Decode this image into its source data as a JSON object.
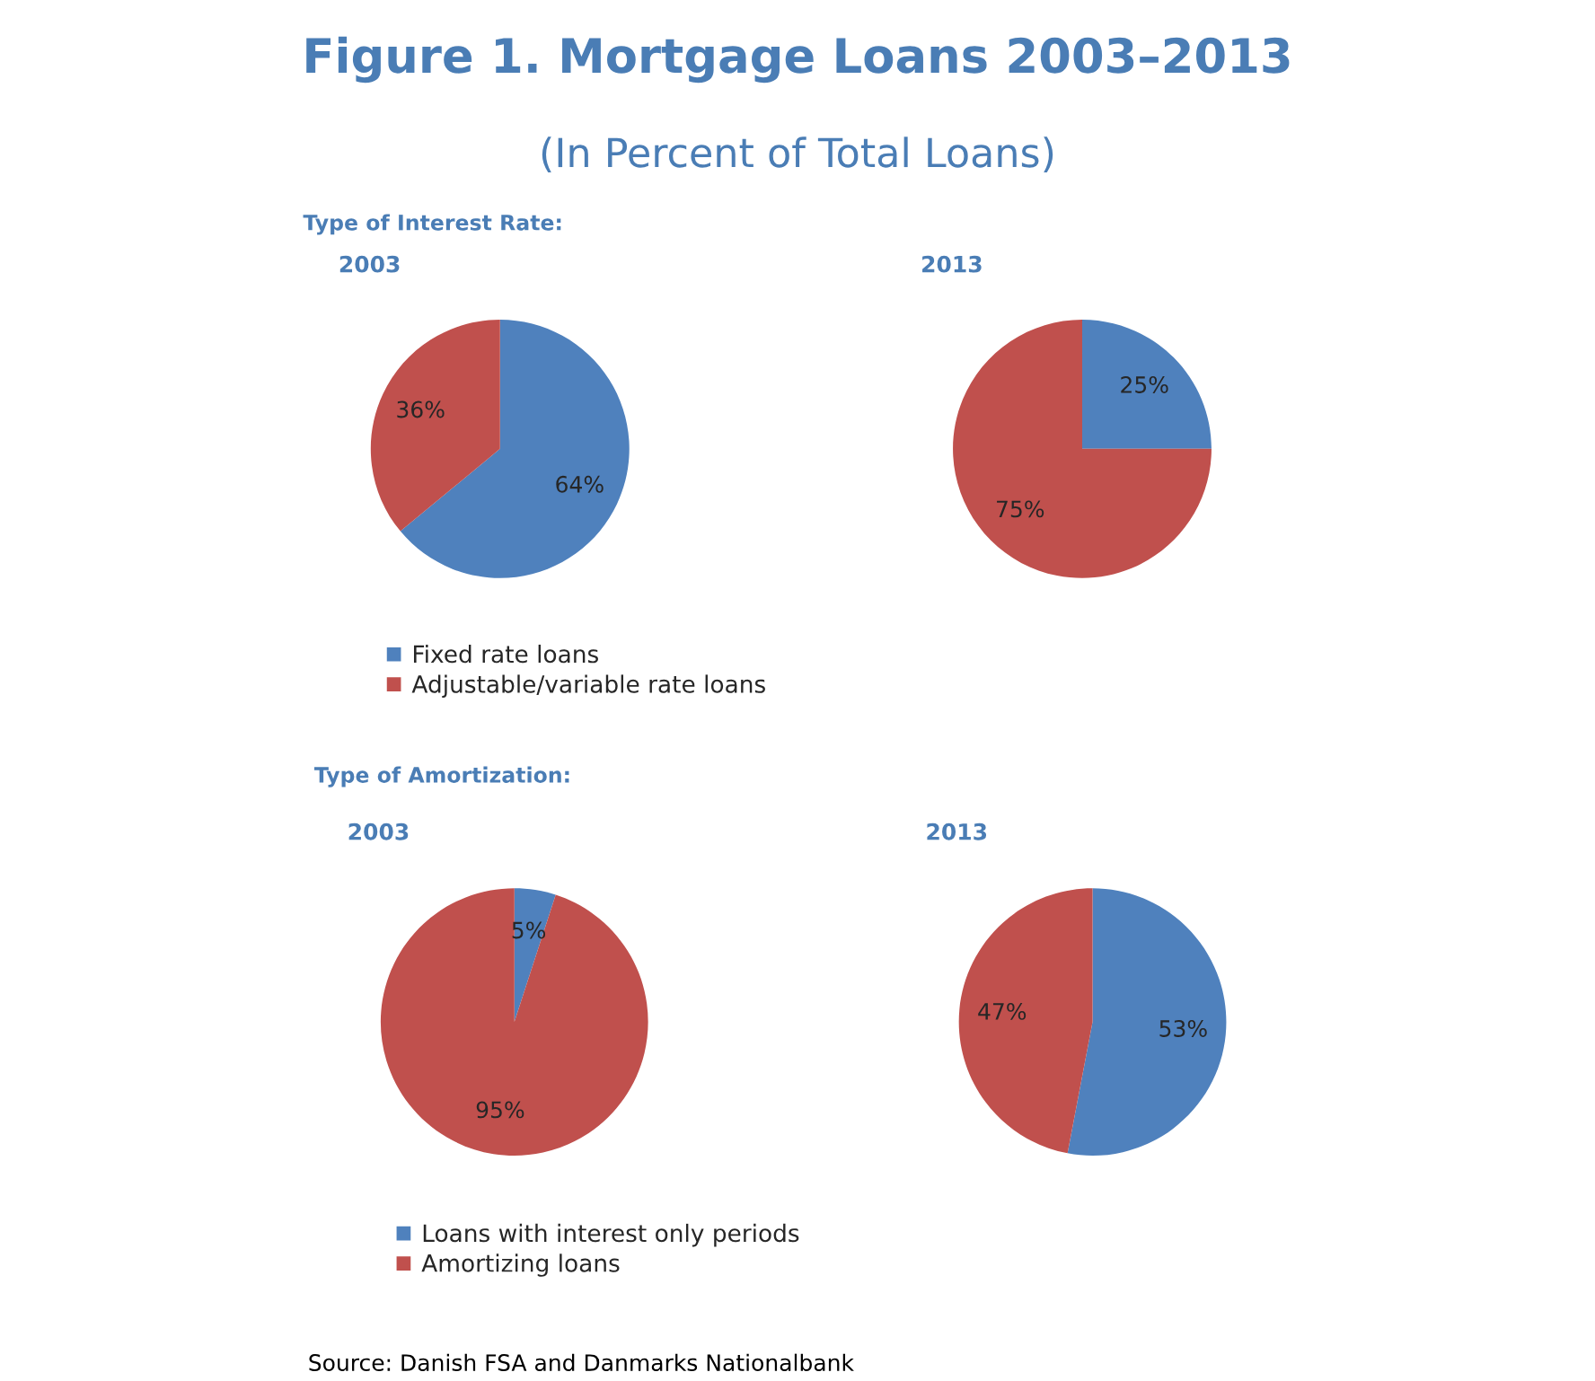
{
  "chart_data": [
    {
      "type": "pie",
      "title": "2003",
      "annotations": [
        "Figure 1. Mortgage Loans 2003–2013",
        "(In Percent of Total Loans)",
        "Type of Interest Rate:"
      ],
      "categories": [
        "Fixed rate loans",
        "Adjustable/variable rate loans"
      ],
      "values": [
        64,
        36
      ],
      "value_labels": [
        "64%",
        "36%"
      ],
      "colors": [
        "#4f81bd",
        "#c0504d"
      ],
      "legend": "bottom"
    },
    {
      "type": "pie",
      "title": "2013",
      "categories": [
        null,
        null
      ],
      "values": [
        25,
        75
      ],
      "value_labels": [
        "25%",
        "75%"
      ],
      "colors": [
        "#4f81bd",
        "#c0504d"
      ]
    },
    {
      "type": "pie",
      "title": "2003",
      "annotations": [
        "Type of Amortization:"
      ],
      "categories": [
        "Loans with interest only periods",
        "Amortizing loans"
      ],
      "values": [
        5,
        95
      ],
      "value_labels": [
        "5%",
        "95%"
      ],
      "colors": [
        "#4f81bd",
        "#c0504d"
      ],
      "legend": "bottom"
    },
    {
      "type": "pie",
      "title": "2013",
      "annotations": [
        "Source: Danish FSA and Danmarks Nationalbank"
      ],
      "categories": [
        null,
        null
      ],
      "values": [
        53,
        47
      ],
      "value_labels": [
        "53%",
        "47%"
      ],
      "colors": [
        "#4f81bd",
        "#c0504d"
      ]
    }
  ]
}
